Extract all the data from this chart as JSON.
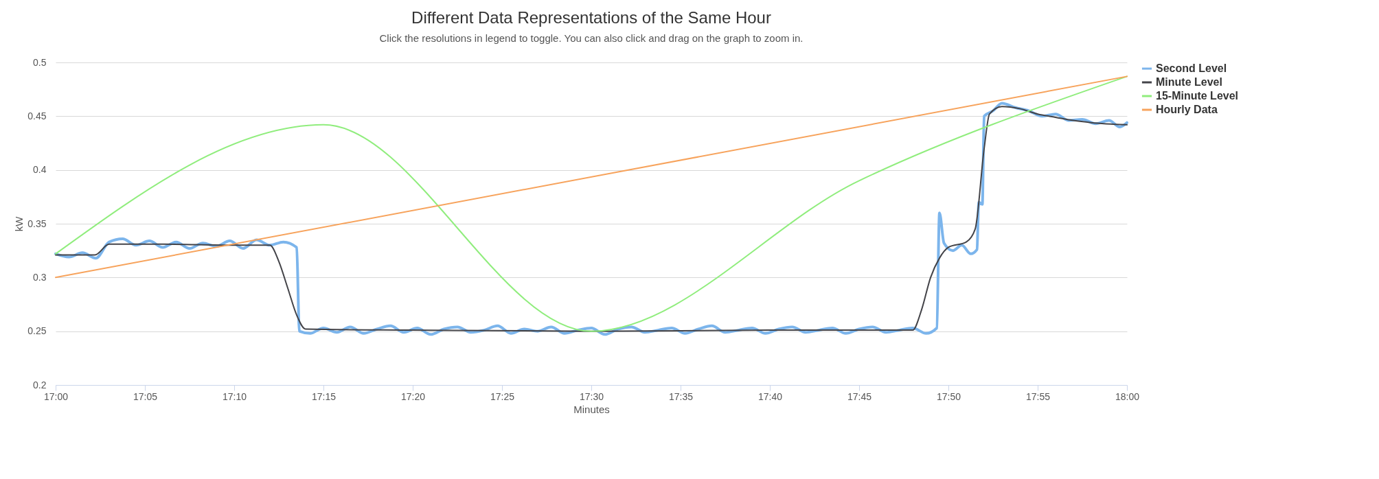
{
  "chart_data": {
    "type": "line",
    "title": "Different Data Representations of the Same Hour",
    "subtitle": "Click the resolutions in legend to toggle. You can also click and drag on the graph to zoom in.",
    "xlabel": "Minutes",
    "ylabel": "kW",
    "xlim": [
      17,
      18
    ],
    "xticks": [
      {
        "value": 17,
        "label": "17:00"
      },
      {
        "value": 17.0833,
        "label": "17:05"
      },
      {
        "value": 17.1667,
        "label": "17:10"
      },
      {
        "value": 17.25,
        "label": "17:15"
      },
      {
        "value": 17.3333,
        "label": "17:20"
      },
      {
        "value": 17.4167,
        "label": "17:25"
      },
      {
        "value": 17.5,
        "label": "17:30"
      },
      {
        "value": 17.5833,
        "label": "17:35"
      },
      {
        "value": 17.6667,
        "label": "17:40"
      },
      {
        "value": 17.75,
        "label": "17:45"
      },
      {
        "value": 17.8333,
        "label": "17:50"
      },
      {
        "value": 17.9167,
        "label": "17:55"
      },
      {
        "value": 18,
        "label": "18:00"
      }
    ],
    "ylim": [
      0.2,
      0.5
    ],
    "yticks": [
      0.2,
      0.25,
      0.3,
      0.35,
      0.4,
      0.45,
      0.5
    ],
    "grid": "y",
    "legend": "right",
    "line_style": "solid",
    "marker": "none",
    "series": [
      {
        "name": "Second Level",
        "color": "#7cb5ec",
        "x": [
          17,
          17.0125,
          17.025,
          17.0375,
          17.05,
          17.0625,
          17.075,
          17.0875,
          17.1,
          17.1125,
          17.125,
          17.1375,
          17.15,
          17.1625,
          17.175,
          17.1875,
          17.2,
          17.2125,
          17.225,
          17.2275,
          17.2375,
          17.25,
          17.2625,
          17.275,
          17.2875,
          17.3,
          17.3125,
          17.325,
          17.3375,
          17.35,
          17.3625,
          17.375,
          17.3875,
          17.4,
          17.4125,
          17.425,
          17.4375,
          17.45,
          17.4625,
          17.475,
          17.4875,
          17.5,
          17.5125,
          17.525,
          17.5375,
          17.55,
          17.5625,
          17.575,
          17.5875,
          17.6,
          17.6125,
          17.625,
          17.6375,
          17.65,
          17.6625,
          17.675,
          17.6875,
          17.7,
          17.7125,
          17.725,
          17.7375,
          17.75,
          17.7625,
          17.775,
          17.7875,
          17.8,
          17.8125,
          17.8225,
          17.825,
          17.8292,
          17.8375,
          17.8458,
          17.8542,
          17.86,
          17.8617,
          17.865,
          17.8667,
          17.875,
          17.8833,
          17.8958,
          17.9083,
          17.9208,
          17.9333,
          17.9458,
          17.9583,
          17.9708,
          17.9833,
          17.9933,
          18
        ],
        "values": [
          0.322,
          0.319,
          0.323,
          0.318,
          0.333,
          0.336,
          0.33,
          0.334,
          0.328,
          0.333,
          0.327,
          0.332,
          0.329,
          0.334,
          0.327,
          0.335,
          0.33,
          0.333,
          0.328,
          0.25,
          0.248,
          0.253,
          0.249,
          0.254,
          0.248,
          0.252,
          0.255,
          0.249,
          0.253,
          0.247,
          0.252,
          0.254,
          0.249,
          0.251,
          0.255,
          0.248,
          0.252,
          0.25,
          0.254,
          0.248,
          0.251,
          0.253,
          0.247,
          0.252,
          0.254,
          0.249,
          0.251,
          0.253,
          0.248,
          0.252,
          0.255,
          0.249,
          0.251,
          0.253,
          0.248,
          0.252,
          0.254,
          0.249,
          0.251,
          0.253,
          0.248,
          0.252,
          0.254,
          0.249,
          0.251,
          0.253,
          0.248,
          0.253,
          0.36,
          0.332,
          0.325,
          0.33,
          0.322,
          0.326,
          0.37,
          0.368,
          0.45,
          0.455,
          0.462,
          0.458,
          0.455,
          0.45,
          0.452,
          0.446,
          0.447,
          0.443,
          0.446,
          0.44,
          0.444
        ]
      },
      {
        "name": "Minute Level",
        "color": "#434348",
        "x": [
          17,
          17.0367,
          17.05,
          17.1,
          17.1667,
          17.2,
          17.2083,
          17.2167,
          17.225,
          17.2333,
          17.3333,
          17.5,
          17.6667,
          17.8,
          17.8083,
          17.8167,
          17.825,
          17.8333,
          17.85,
          17.8583,
          17.8667,
          17.8717,
          17.8833,
          17.9,
          17.9167,
          17.9333,
          17.95,
          17.9667,
          18
        ],
        "values": [
          0.321,
          0.321,
          0.331,
          0.331,
          0.33,
          0.33,
          0.315,
          0.29,
          0.265,
          0.252,
          0.251,
          0.25,
          0.251,
          0.251,
          0.27,
          0.3,
          0.318,
          0.328,
          0.333,
          0.345,
          0.42,
          0.452,
          0.459,
          0.457,
          0.452,
          0.449,
          0.446,
          0.444,
          0.442
        ]
      },
      {
        "name": "15-Minute Level",
        "color": "#90ed7d",
        "x": [
          17,
          17.25,
          17.5,
          17.75,
          18
        ],
        "values": [
          0.322,
          0.442,
          0.25,
          0.39,
          0.487
        ]
      },
      {
        "name": "Hourly Data",
        "color": "#f7a35c",
        "x": [
          17,
          18
        ],
        "values": [
          0.3,
          0.487
        ]
      }
    ]
  }
}
